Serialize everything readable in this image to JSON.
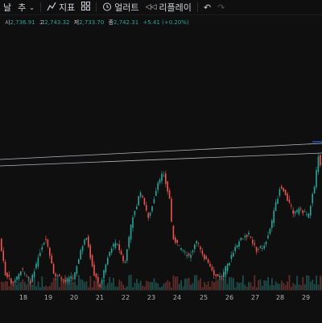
{
  "toolbar": {
    "interval": "날",
    "interval2": "추",
    "indicators_label": "지표",
    "alert_label": "얼러트",
    "replay_label": "리플레이"
  },
  "ohlc": {
    "open_label": "시",
    "open": "2,736.91",
    "high_label": "고",
    "high": "2,743.32",
    "low_label": "저",
    "low": "2,733.70",
    "close_label": "종",
    "close": "2,742.31",
    "change": "+5.41 (+0.20%)"
  },
  "colors": {
    "up": "#26a69a",
    "down": "#ef5350",
    "trendline": "#b2b5be",
    "trendline_highlight": "#2962ff",
    "volume_up": "#1e4d49",
    "volume_down": "#5c2b2a"
  },
  "chart_data": {
    "type": "candlestick",
    "x_ticks": [
      "18",
      "19",
      "20",
      "21",
      "22",
      "23",
      "24",
      "25",
      "26",
      "27",
      "28",
      "29"
    ]
  }
}
